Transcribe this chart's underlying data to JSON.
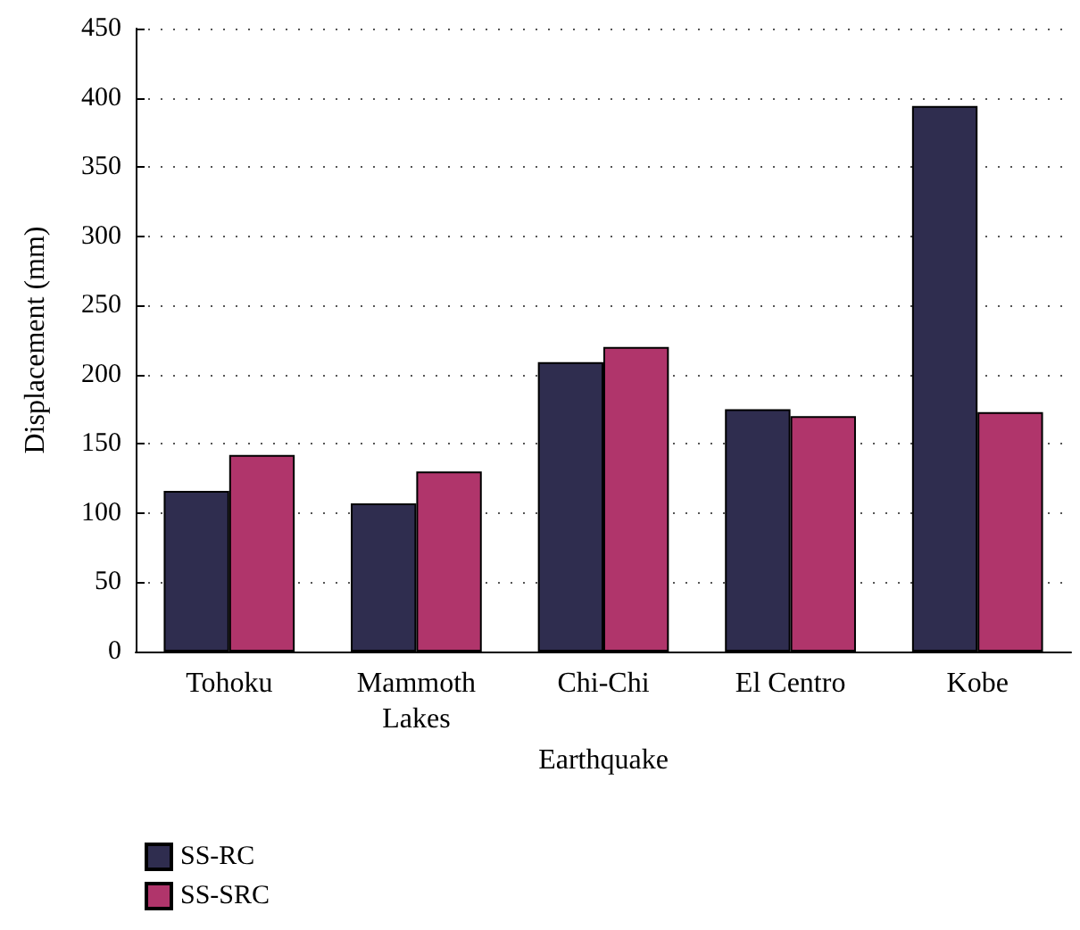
{
  "chart_data": {
    "type": "bar",
    "xlabel": "Earthquake",
    "ylabel": "Displacement (mm)",
    "categories": [
      "Tohoku",
      "Mammoth\nLakes",
      "Chi-Chi",
      "El Centro",
      "Kobe"
    ],
    "series": [
      {
        "name": "SS-RC",
        "color": "#2f2d4f",
        "values": [
          116,
          107,
          209,
          175,
          394
        ]
      },
      {
        "name": "SS-SRC",
        "color": "#b0356b",
        "values": [
          142,
          130,
          220,
          170,
          173
        ]
      }
    ],
    "ylim": [
      0,
      450
    ],
    "yticks": [
      0,
      50,
      100,
      150,
      200,
      250,
      300,
      350,
      400,
      450
    ],
    "grid": "y",
    "legend": "bottom left"
  }
}
